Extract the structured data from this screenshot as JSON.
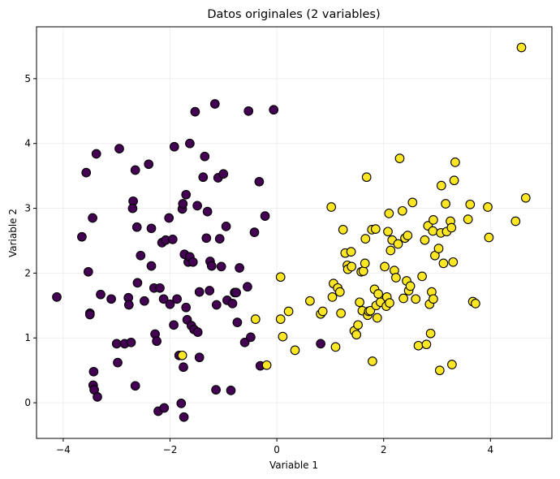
{
  "chart_data": {
    "type": "scatter",
    "title": "Datos originales (2 variables)",
    "xlabel": "Variable 1",
    "ylabel": "Variable 2",
    "xlim": [
      -4.5,
      5.15
    ],
    "ylim": [
      -0.55,
      5.8
    ],
    "xticks": [
      -4,
      -2,
      0,
      2,
      4
    ],
    "yticks": [
      0,
      1,
      2,
      3,
      4,
      5
    ],
    "grid": true,
    "colors": {
      "cluster_0": "#440154",
      "cluster_1": "#fde725",
      "edge": "#000000",
      "grid": "#ebebeb"
    },
    "series": [
      {
        "color": "#440154",
        "points": [
          [
            -4.12,
            1.63
          ],
          [
            -3.65,
            2.56
          ],
          [
            -3.57,
            3.55
          ],
          [
            -3.53,
            2.02
          ],
          [
            -3.5,
            1.38
          ],
          [
            -3.5,
            1.36
          ],
          [
            -3.45,
            2.85
          ],
          [
            -3.43,
            0.48
          ],
          [
            -3.44,
            0.27
          ],
          [
            -3.42,
            0.2
          ],
          [
            -3.38,
            3.84
          ],
          [
            -3.36,
            0.09
          ],
          [
            -3.3,
            1.67
          ],
          [
            -3.1,
            1.6
          ],
          [
            -3.0,
            0.91
          ],
          [
            -2.98,
            0.62
          ],
          [
            -2.95,
            3.92
          ],
          [
            -2.85,
            0.91
          ],
          [
            -2.78,
            1.62
          ],
          [
            -2.77,
            1.51
          ],
          [
            -2.73,
            0.93
          ],
          [
            -2.69,
            3.11
          ],
          [
            -2.7,
            3.0
          ],
          [
            -2.65,
            3.59
          ],
          [
            -2.65,
            0.26
          ],
          [
            -2.62,
            2.71
          ],
          [
            -2.61,
            1.85
          ],
          [
            -2.55,
            2.27
          ],
          [
            -2.48,
            1.57
          ],
          [
            -2.4,
            3.68
          ],
          [
            -2.35,
            2.11
          ],
          [
            -2.35,
            2.69
          ],
          [
            -2.3,
            1.77
          ],
          [
            -2.28,
            1.06
          ],
          [
            -2.25,
            0.95
          ],
          [
            -2.22,
            -0.13
          ],
          [
            -2.19,
            1.77
          ],
          [
            -2.15,
            2.47
          ],
          [
            -2.12,
            1.6
          ],
          [
            -2.11,
            -0.08
          ],
          [
            -2.08,
            2.51
          ],
          [
            -2.02,
            2.85
          ],
          [
            -2.0,
            1.52
          ],
          [
            -1.95,
            2.52
          ],
          [
            -1.93,
            1.2
          ],
          [
            -1.92,
            3.95
          ],
          [
            -1.87,
            1.6
          ],
          [
            -1.83,
            0.73
          ],
          [
            -1.79,
            -0.01
          ],
          [
            -1.77,
            2.99
          ],
          [
            -1.76,
            3.07
          ],
          [
            -1.75,
            0.55
          ],
          [
            -1.74,
            -0.22
          ],
          [
            -1.73,
            2.29
          ],
          [
            -1.7,
            3.21
          ],
          [
            -1.7,
            1.47
          ],
          [
            -1.68,
            1.28
          ],
          [
            -1.66,
            2.17
          ],
          [
            -1.63,
            4.0
          ],
          [
            -1.63,
            2.25
          ],
          [
            -1.6,
            1.19
          ],
          [
            -1.57,
            2.17
          ],
          [
            -1.55,
            1.13
          ],
          [
            -1.53,
            4.49
          ],
          [
            -1.49,
            3.04
          ],
          [
            -1.48,
            1.09
          ],
          [
            -1.45,
            1.71
          ],
          [
            -1.45,
            0.7
          ],
          [
            -1.38,
            3.48
          ],
          [
            -1.35,
            3.8
          ],
          [
            -1.32,
            2.54
          ],
          [
            -1.3,
            2.95
          ],
          [
            -1.26,
            1.73
          ],
          [
            -1.25,
            2.18
          ],
          [
            -1.22,
            2.11
          ],
          [
            -1.16,
            4.61
          ],
          [
            -1.14,
            0.2
          ],
          [
            -1.13,
            1.51
          ],
          [
            -1.1,
            3.47
          ],
          [
            -1.07,
            2.53
          ],
          [
            -1.04,
            2.1
          ],
          [
            -1.0,
            3.53
          ],
          [
            -0.95,
            2.72
          ],
          [
            -0.93,
            1.58
          ],
          [
            -0.86,
            0.19
          ],
          [
            -0.83,
            1.53
          ],
          [
            -0.79,
            1.7
          ],
          [
            -0.76,
            1.7
          ],
          [
            -0.74,
            1.24
          ],
          [
            -0.7,
            2.08
          ],
          [
            -0.6,
            0.93
          ],
          [
            -0.55,
            1.79
          ],
          [
            -0.53,
            4.5
          ],
          [
            -0.49,
            1.01
          ],
          [
            -0.42,
            2.63
          ],
          [
            -0.33,
            3.41
          ],
          [
            -0.31,
            0.57
          ],
          [
            -0.22,
            2.88
          ],
          [
            -0.06,
            4.52
          ],
          [
            0.82,
            0.91
          ]
        ]
      },
      {
        "color": "#fde725",
        "points": [
          [
            -1.77,
            0.73
          ],
          [
            -0.4,
            1.29
          ],
          [
            -0.19,
            0.58
          ],
          [
            0.07,
            1.94
          ],
          [
            0.07,
            1.29
          ],
          [
            0.11,
            1.02
          ],
          [
            0.22,
            1.41
          ],
          [
            0.34,
            0.81
          ],
          [
            0.62,
            1.57
          ],
          [
            0.82,
            1.37
          ],
          [
            0.86,
            1.41
          ],
          [
            1.02,
            3.02
          ],
          [
            1.04,
            1.63
          ],
          [
            1.06,
            1.84
          ],
          [
            1.1,
            0.86
          ],
          [
            1.14,
            1.77
          ],
          [
            1.18,
            1.71
          ],
          [
            1.2,
            1.38
          ],
          [
            1.24,
            2.67
          ],
          [
            1.28,
            2.31
          ],
          [
            1.32,
            2.12
          ],
          [
            1.33,
            2.06
          ],
          [
            1.39,
            2.33
          ],
          [
            1.4,
            2.1
          ],
          [
            1.45,
            1.11
          ],
          [
            1.49,
            1.05
          ],
          [
            1.52,
            1.2
          ],
          [
            1.55,
            1.55
          ],
          [
            1.58,
            2.02
          ],
          [
            1.6,
            1.42
          ],
          [
            1.62,
            2.03
          ],
          [
            1.65,
            2.15
          ],
          [
            1.66,
            2.53
          ],
          [
            1.68,
            3.48
          ],
          [
            1.7,
            1.35
          ],
          [
            1.72,
            1.41
          ],
          [
            1.75,
            1.42
          ],
          [
            1.78,
            2.67
          ],
          [
            1.79,
            0.64
          ],
          [
            1.83,
            1.75
          ],
          [
            1.85,
            2.68
          ],
          [
            1.86,
            1.5
          ],
          [
            1.88,
            1.31
          ],
          [
            1.9,
            1.68
          ],
          [
            1.94,
            1.55
          ],
          [
            2.02,
            2.1
          ],
          [
            2.05,
            1.49
          ],
          [
            2.06,
            1.63
          ],
          [
            2.08,
            2.64
          ],
          [
            2.1,
            2.92
          ],
          [
            2.11,
            1.54
          ],
          [
            2.13,
            2.35
          ],
          [
            2.16,
            2.51
          ],
          [
            2.2,
            2.04
          ],
          [
            2.23,
            1.93
          ],
          [
            2.27,
            2.45
          ],
          [
            2.3,
            3.77
          ],
          [
            2.35,
            2.96
          ],
          [
            2.37,
            1.61
          ],
          [
            2.4,
            2.54
          ],
          [
            2.43,
            1.88
          ],
          [
            2.45,
            2.58
          ],
          [
            2.47,
            1.73
          ],
          [
            2.5,
            1.8
          ],
          [
            2.54,
            3.09
          ],
          [
            2.6,
            1.6
          ],
          [
            2.65,
            0.88
          ],
          [
            2.72,
            1.95
          ],
          [
            2.77,
            2.51
          ],
          [
            2.8,
            0.9
          ],
          [
            2.83,
            2.73
          ],
          [
            2.86,
            1.52
          ],
          [
            2.88,
            1.07
          ],
          [
            2.9,
            1.71
          ],
          [
            2.92,
            2.65
          ],
          [
            2.93,
            2.82
          ],
          [
            2.93,
            1.6
          ],
          [
            2.96,
            2.27
          ],
          [
            3.03,
            2.38
          ],
          [
            3.05,
            0.5
          ],
          [
            3.07,
            2.62
          ],
          [
            3.08,
            3.35
          ],
          [
            3.12,
            2.15
          ],
          [
            3.16,
            3.07
          ],
          [
            3.18,
            2.64
          ],
          [
            3.25,
            2.8
          ],
          [
            3.27,
            2.7
          ],
          [
            3.28,
            0.59
          ],
          [
            3.3,
            2.17
          ],
          [
            3.32,
            3.43
          ],
          [
            3.34,
            3.71
          ],
          [
            3.58,
            2.83
          ],
          [
            3.62,
            3.06
          ],
          [
            3.67,
            1.56
          ],
          [
            3.72,
            1.53
          ],
          [
            3.95,
            3.02
          ],
          [
            3.97,
            2.55
          ],
          [
            4.47,
            2.8
          ],
          [
            4.58,
            5.48
          ],
          [
            4.66,
            3.16
          ]
        ]
      }
    ]
  }
}
